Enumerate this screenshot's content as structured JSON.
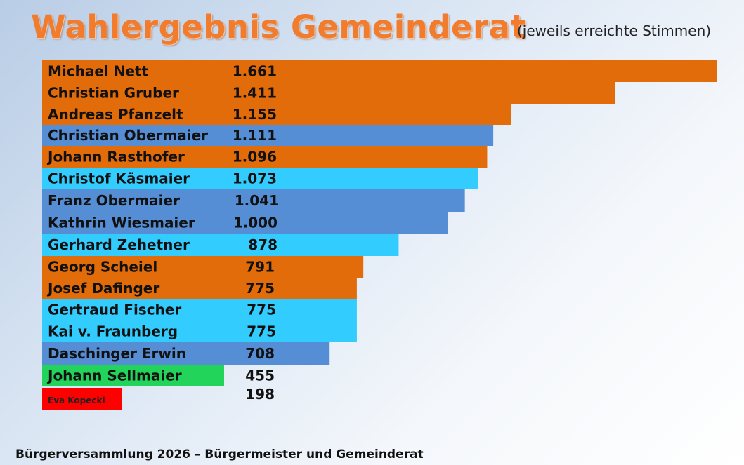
{
  "title": "Wahlergebnis Gemeinderat",
  "subtitle": "(jeweils erreichte Stimmen)",
  "footer": "Bürgerversammlung 2026 – Bürgermeister und Gemeinderat",
  "colors": {
    "orange": "#e36c0a",
    "blue": "#558ed5",
    "cyan": "#33ccff",
    "green": "#22d45a",
    "red": "#ff0000",
    "title": "#f27c2e"
  },
  "chart_data": {
    "type": "bar",
    "orientation": "horizontal",
    "title": "Wahlergebnis Gemeinderat",
    "subtitle": "(jeweils erreichte Stimmen)",
    "xlim": [
      0,
      1661
    ],
    "grid": false,
    "legend": "none",
    "categories": [
      "Michael Nett",
      "Christian Gruber",
      "Andreas Pfanzelt",
      "Christian Obermaier",
      "Johann Rasthofer",
      "Christof Käsmaier",
      "Franz Obermaier",
      "Kathrin Wiesmaier",
      "Gerhard Zehetner",
      "Georg Scheiel",
      "Josef Dafinger",
      "Gertraud Fischer",
      "Kai v. Fraunberg",
      "Daschinger Erwin",
      "Johann Sellmaier",
      "Eva Kopecki"
    ],
    "values": [
      1661,
      1411,
      1155,
      1111,
      1096,
      1073,
      1041,
      1000,
      878,
      791,
      775,
      775,
      775,
      708,
      455,
      198
    ],
    "value_labels": [
      "1.661",
      "1.411",
      "1.155",
      "1.111",
      "1.096",
      "1.073",
      "1.041",
      "1.000",
      "878",
      "791",
      "775",
      "775",
      "775",
      "708",
      "455",
      "198"
    ],
    "bar_colors": [
      "#e36c0a",
      "#e36c0a",
      "#e36c0a",
      "#558ed5",
      "#e36c0a",
      "#33ccff",
      "#558ed5",
      "#558ed5",
      "#33ccff",
      "#e36c0a",
      "#e36c0a",
      "#33ccff",
      "#33ccff",
      "#558ed5",
      "#22d45a",
      "#ff0000"
    ]
  }
}
